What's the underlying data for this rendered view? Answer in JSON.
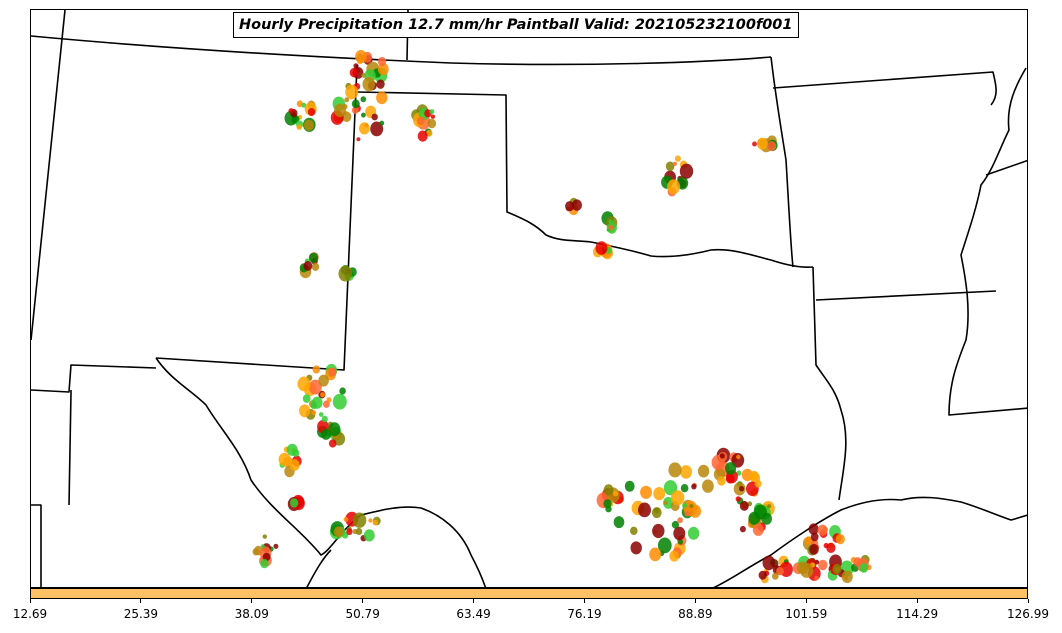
{
  "title": "Hourly Precipitation 12.7 mm/hr Paintball Valid: 202105232100f001",
  "colorbar": {
    "color": "#ffc066",
    "ticks": [
      "12.69",
      "25.39",
      "38.09",
      "50.79",
      "63.49",
      "76.19",
      "88.89",
      "101.59",
      "114.29",
      "126.99"
    ]
  },
  "member_colors": [
    "#008000",
    "#33cc33",
    "#8b0000",
    "#e60000",
    "#ff6633",
    "#ff8c00",
    "#ffa500",
    "#808000",
    "#b8860b"
  ]
}
